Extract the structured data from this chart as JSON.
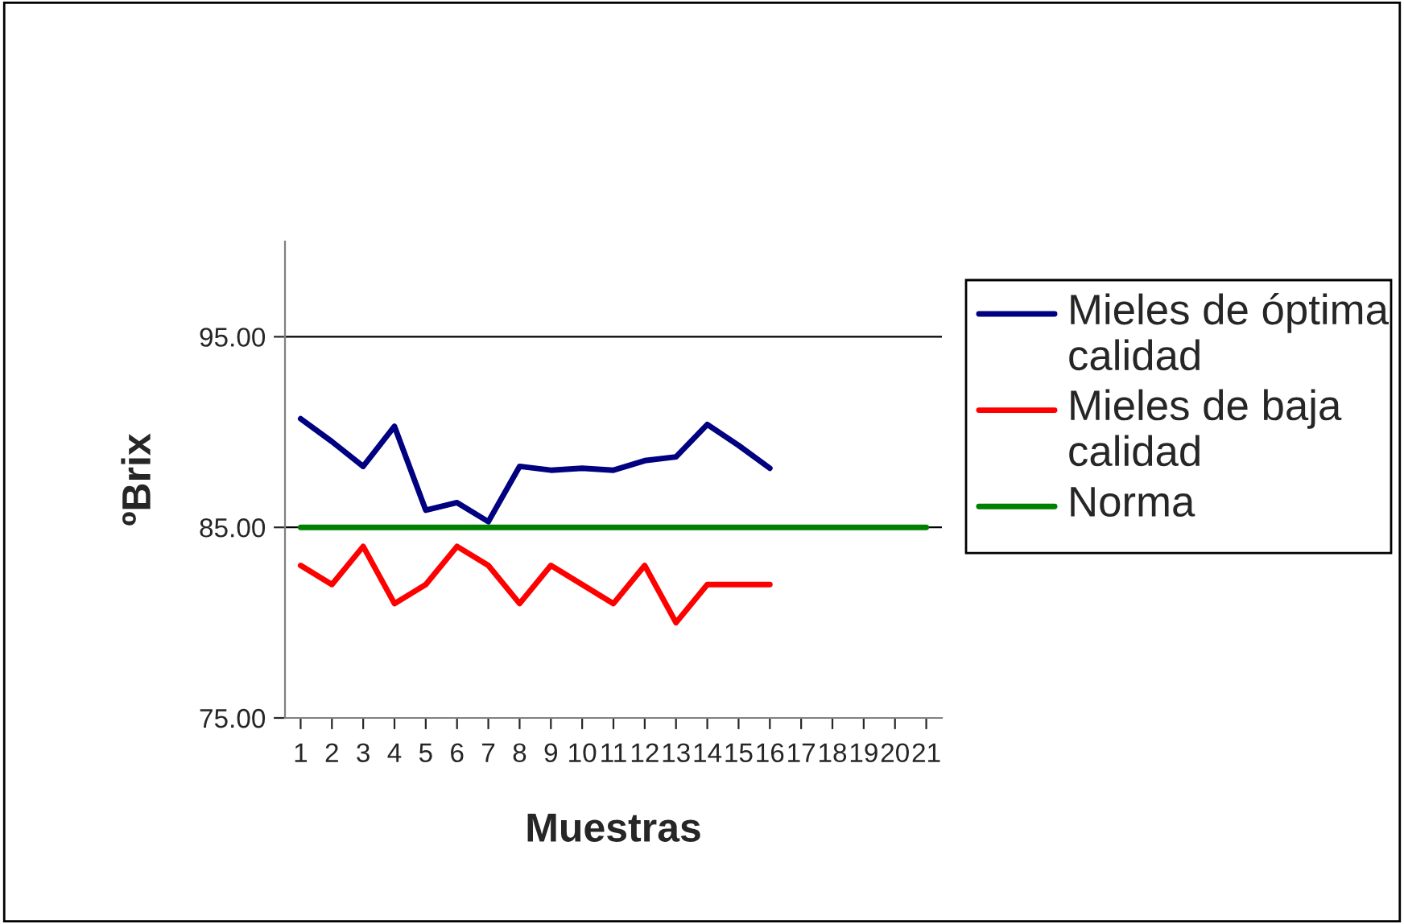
{
  "chart_data": {
    "type": "line",
    "xlabel": "Muestras",
    "ylabel": "ºBrix",
    "categories": [
      "1",
      "2",
      "3",
      "4",
      "5",
      "6",
      "7",
      "8",
      "9",
      "10",
      "11",
      "12",
      "13",
      "14",
      "15",
      "16",
      "17",
      "18",
      "19",
      "20",
      "21"
    ],
    "series": [
      {
        "name": "Mieles de óptima calidad",
        "color": "#000080",
        "values": [
          90.7,
          89.5,
          88.2,
          90.3,
          85.9,
          86.3,
          85.3,
          88.2,
          88.0,
          88.1,
          88.0,
          88.5,
          88.7,
          90.4,
          89.3,
          88.1,
          null,
          null,
          null,
          null,
          null
        ]
      },
      {
        "name": "Mieles de baja calidad",
        "color": "#ff0000",
        "values": [
          83,
          82,
          84,
          81,
          82,
          84,
          83,
          81,
          83,
          82,
          81,
          83,
          80,
          82,
          82,
          82,
          null,
          null,
          null,
          null,
          null
        ]
      },
      {
        "name": "Norma",
        "color": "#008000",
        "values": [
          85,
          85,
          85,
          85,
          85,
          85,
          85,
          85,
          85,
          85,
          85,
          85,
          85,
          85,
          85,
          85,
          85,
          85,
          85,
          85,
          85
        ]
      }
    ],
    "ylim": [
      75,
      100
    ],
    "yticks": [
      {
        "value": 75,
        "label": "75.00"
      },
      {
        "value": 85,
        "label": "85.00"
      },
      {
        "value": 95,
        "label": "95.00"
      }
    ],
    "grid": "y",
    "legend": "right",
    "marker": "none",
    "line_style": "solid"
  }
}
